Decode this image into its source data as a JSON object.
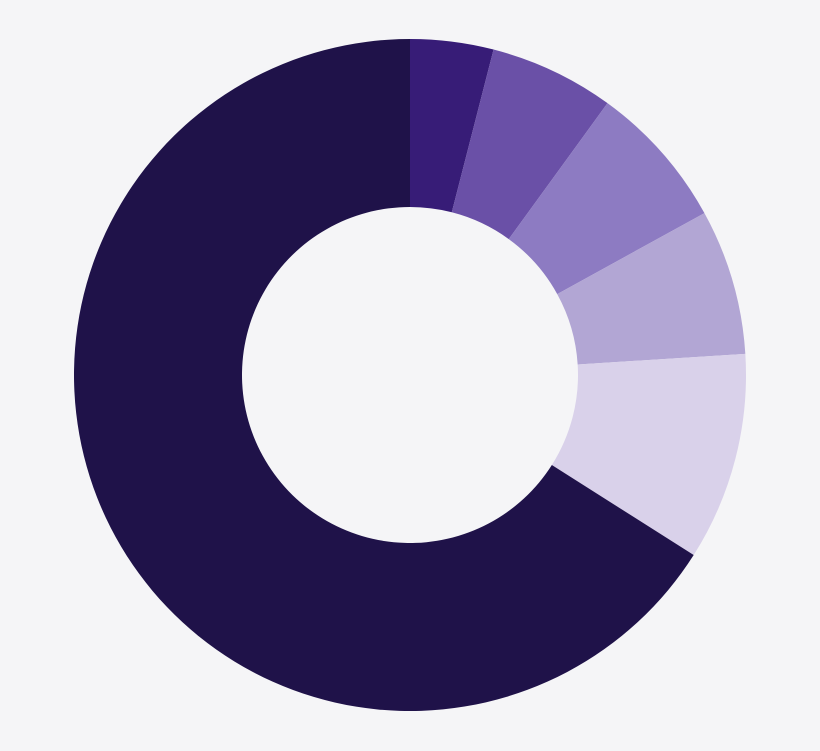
{
  "chart_data": {
    "type": "pie",
    "values": [
      4,
      6,
      7,
      7,
      10,
      66
    ],
    "colors": [
      "#371c77",
      "#6a50a7",
      "#8d7bc2",
      "#b2a6d4",
      "#d9d1ea",
      "#1f1249"
    ]
  }
}
